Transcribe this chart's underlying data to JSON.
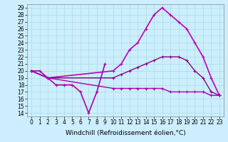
{
  "title": "",
  "xlabel": "Windchill (Refroidissement éolien,°C)",
  "xlim": [
    -0.5,
    23.5
  ],
  "ylim": [
    13.5,
    29.5
  ],
  "xticks": [
    0,
    1,
    2,
    3,
    4,
    5,
    6,
    7,
    8,
    9,
    10,
    11,
    12,
    13,
    14,
    15,
    16,
    17,
    18,
    19,
    20,
    21,
    22,
    23
  ],
  "yticks": [
    14,
    15,
    16,
    17,
    18,
    19,
    20,
    21,
    22,
    23,
    24,
    25,
    26,
    27,
    28,
    29
  ],
  "bg_color": "#cceeff",
  "lines": [
    {
      "x": [
        0,
        2,
        10,
        11,
        12,
        13,
        14,
        15,
        16,
        17,
        18,
        19,
        20,
        21,
        22,
        23
      ],
      "y": [
        20,
        19,
        20,
        21,
        23,
        24,
        26,
        28,
        29,
        28,
        27,
        26,
        24,
        22,
        19,
        16.5
      ],
      "color": "#bb00bb",
      "lw": 1.2
    },
    {
      "x": [
        0,
        1,
        2,
        3,
        4,
        5,
        6,
        7,
        8,
        9
      ],
      "y": [
        20,
        20,
        19,
        18,
        18,
        18,
        17,
        14,
        17,
        21
      ],
      "color": "#aa00aa",
      "lw": 1.2
    },
    {
      "x": [
        0,
        2,
        10,
        11,
        12,
        13,
        14,
        15,
        16,
        17,
        18,
        19,
        20,
        21,
        22,
        23
      ],
      "y": [
        20,
        19,
        19,
        19.5,
        20,
        20.5,
        21,
        21.5,
        22,
        22,
        22,
        21.5,
        20,
        19,
        17,
        16.5
      ],
      "color": "#880088",
      "lw": 1.0
    },
    {
      "x": [
        0,
        2,
        10,
        11,
        12,
        13,
        14,
        15,
        16,
        17,
        18,
        19,
        20,
        21,
        22,
        23
      ],
      "y": [
        20,
        19,
        17.5,
        17.5,
        17.5,
        17.5,
        17.5,
        17.5,
        17.5,
        17,
        17,
        17,
        17,
        17,
        16.5,
        16.5
      ],
      "color": "#aa00aa",
      "lw": 1.0
    }
  ],
  "grid_color": "#aadddd",
  "tick_fontsize": 5.5,
  "label_fontsize": 6.5
}
